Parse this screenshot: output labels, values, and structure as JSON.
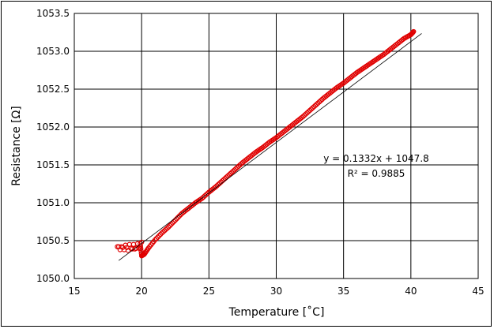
{
  "chart_data": {
    "type": "scatter",
    "title": "",
    "xlabel": "Temperature [˚C]",
    "ylabel": "Resistance [Ω]",
    "xlim": [
      15,
      45
    ],
    "ylim": [
      1050.0,
      1053.5
    ],
    "x_ticks": [
      "15",
      "20",
      "25",
      "30",
      "35",
      "40",
      "45"
    ],
    "y_ticks": [
      "1050.0",
      "1050.5",
      "1051.0",
      "1051.5",
      "1052.0",
      "1052.5",
      "1053.0",
      "1053.5"
    ],
    "grid": true,
    "legend": "none",
    "marker_color": "#e00000",
    "trendline_color": "#000000",
    "trendline": {
      "slope": 0.1332,
      "intercept": 1047.8,
      "x_range": [
        18.3,
        40.8
      ]
    },
    "annotation": {
      "equation": "y = 0.1332x + 1047.8",
      "r_squared": "R² = 0.9885"
    },
    "series": [
      {
        "x": [
          18.2,
          18.5,
          18.8,
          19.1,
          19.4,
          19.7,
          20.0,
          19.8,
          19.5,
          19.2,
          18.9,
          18.6,
          18.3,
          18.4,
          18.7,
          19.0,
          19.3,
          19.6,
          19.9,
          20.0,
          20.2,
          20.5,
          21.0,
          21.5,
          22.0,
          22.5,
          23.0,
          23.5,
          24.0,
          24.5,
          25.0,
          25.5,
          26.0,
          26.5,
          27.0,
          27.5,
          28.0,
          28.5,
          29.0,
          29.5,
          30.0,
          30.5,
          31.0,
          31.5,
          32.0,
          32.5,
          33.0,
          33.5,
          34.0,
          34.5,
          35.0,
          35.5,
          36.0,
          36.5,
          37.0,
          37.5,
          38.0,
          38.5,
          39.0,
          39.5,
          40.0,
          40.2
        ],
        "y": [
          1050.42,
          1050.42,
          1050.44,
          1050.45,
          1050.45,
          1050.46,
          1050.48,
          1050.4,
          1050.39,
          1050.4,
          1050.41,
          1050.41,
          1050.42,
          1050.38,
          1050.38,
          1050.37,
          1050.39,
          1050.4,
          1050.46,
          1050.3,
          1050.32,
          1050.4,
          1050.51,
          1050.6,
          1050.68,
          1050.77,
          1050.86,
          1050.93,
          1051.0,
          1051.06,
          1051.14,
          1051.21,
          1051.29,
          1051.37,
          1051.45,
          1051.53,
          1051.6,
          1051.67,
          1051.73,
          1051.8,
          1051.86,
          1051.93,
          1052.0,
          1052.07,
          1052.14,
          1052.22,
          1052.3,
          1052.38,
          1052.45,
          1052.52,
          1052.58,
          1052.65,
          1052.72,
          1052.78,
          1052.84,
          1052.9,
          1052.96,
          1053.03,
          1053.1,
          1053.17,
          1053.22,
          1053.26
        ]
      }
    ]
  }
}
